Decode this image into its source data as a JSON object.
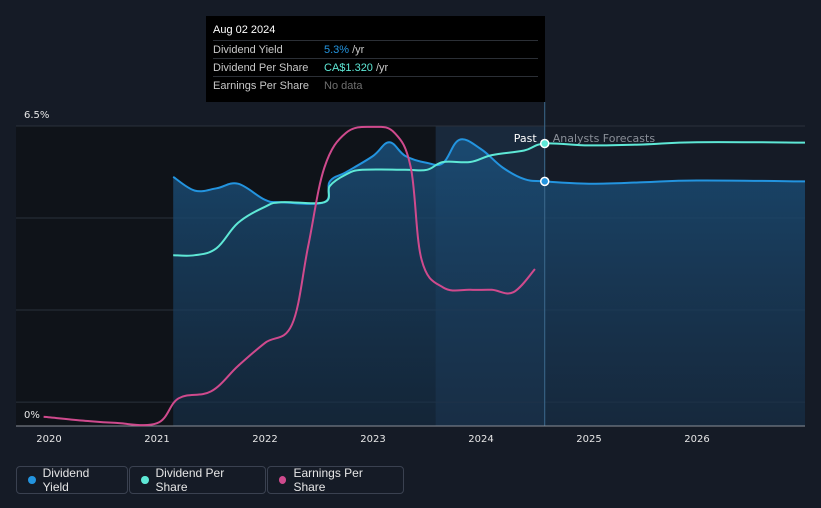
{
  "chart_data": {
    "type": "line",
    "xlim": [
      2020.0,
      2027.0
    ],
    "ylim": [
      0,
      6.5
    ],
    "y_tick_labels": [
      "6.5%",
      "0%"
    ],
    "x_tick_labels": [
      "2020",
      "2021",
      "2022",
      "2023",
      "2024",
      "2025",
      "2026"
    ],
    "past_label": "Past",
    "forecast_label": "Analysts Forecasts",
    "past_end_x": 2024.59,
    "highlight_x_start": 2023.58,
    "series": [
      {
        "name": "Dividend Yield",
        "color": "#2394df",
        "points": [
          [
            2021.15,
            5.4
          ],
          [
            2021.35,
            5.1
          ],
          [
            2021.55,
            5.15
          ],
          [
            2021.75,
            5.25
          ],
          [
            2022.0,
            4.9
          ],
          [
            2022.15,
            4.85
          ],
          [
            2022.55,
            4.85
          ],
          [
            2022.6,
            5.3
          ],
          [
            2022.75,
            5.5
          ],
          [
            2023.0,
            5.85
          ],
          [
            2023.15,
            6.15
          ],
          [
            2023.3,
            5.85
          ],
          [
            2023.5,
            5.7
          ],
          [
            2023.65,
            5.7
          ],
          [
            2023.8,
            6.2
          ],
          [
            2024.0,
            6.0
          ],
          [
            2024.2,
            5.6
          ],
          [
            2024.4,
            5.35
          ],
          [
            2024.59,
            5.3
          ],
          [
            2025.0,
            5.25
          ],
          [
            2025.5,
            5.28
          ],
          [
            2026.0,
            5.32
          ],
          [
            2027.0,
            5.3
          ]
        ]
      },
      {
        "name": "Dividend Per Share",
        "color": "#5ee8d6",
        "points": [
          [
            2021.15,
            3.7
          ],
          [
            2021.35,
            3.7
          ],
          [
            2021.55,
            3.85
          ],
          [
            2021.75,
            4.4
          ],
          [
            2022.0,
            4.75
          ],
          [
            2022.15,
            4.85
          ],
          [
            2022.55,
            4.85
          ],
          [
            2022.6,
            5.2
          ],
          [
            2022.75,
            5.45
          ],
          [
            2022.9,
            5.55
          ],
          [
            2023.3,
            5.55
          ],
          [
            2023.5,
            5.55
          ],
          [
            2023.65,
            5.72
          ],
          [
            2023.9,
            5.72
          ],
          [
            2024.1,
            5.87
          ],
          [
            2024.4,
            5.97
          ],
          [
            2024.59,
            6.12
          ],
          [
            2025.0,
            6.08
          ],
          [
            2025.5,
            6.1
          ],
          [
            2026.0,
            6.15
          ],
          [
            2027.0,
            6.14
          ]
        ]
      },
      {
        "name": "Earnings Per Share",
        "color": "#cf4a8d",
        "points": [
          [
            2019.95,
            0.2
          ],
          [
            2020.3,
            0.12
          ],
          [
            2020.6,
            0.07
          ],
          [
            2021.0,
            0.06
          ],
          [
            2021.2,
            0.6
          ],
          [
            2021.5,
            0.75
          ],
          [
            2021.75,
            1.3
          ],
          [
            2022.0,
            1.8
          ],
          [
            2022.25,
            2.2
          ],
          [
            2022.4,
            3.9
          ],
          [
            2022.55,
            5.6
          ],
          [
            2022.75,
            6.35
          ],
          [
            2023.0,
            6.48
          ],
          [
            2023.2,
            6.35
          ],
          [
            2023.35,
            5.6
          ],
          [
            2023.45,
            3.6
          ],
          [
            2023.65,
            3.0
          ],
          [
            2023.9,
            2.95
          ],
          [
            2024.1,
            2.95
          ],
          [
            2024.3,
            2.9
          ],
          [
            2024.5,
            3.4
          ]
        ]
      }
    ],
    "markers": [
      {
        "series": "Dividend Yield",
        "x": 2024.59,
        "y": 5.3
      },
      {
        "series": "Dividend Per Share",
        "x": 2024.59,
        "y": 6.12
      }
    ]
  },
  "tooltip": {
    "date": "Aug 02 2024",
    "rows": [
      {
        "label": "Dividend Yield",
        "value": "5.3%",
        "unit": "/yr",
        "color": "#2394df"
      },
      {
        "label": "Dividend Per Share",
        "value": "CA$1.320",
        "unit": "/yr",
        "color": "#5ee8d6"
      },
      {
        "label": "Earnings Per Share",
        "value": "No data"
      }
    ]
  },
  "legend": {
    "items": [
      {
        "label": "Dividend Yield",
        "color": "#2394df"
      },
      {
        "label": "Dividend Per Share",
        "color": "#5ee8d6"
      },
      {
        "label": "Earnings Per Share",
        "color": "#cf4a8d"
      }
    ]
  }
}
